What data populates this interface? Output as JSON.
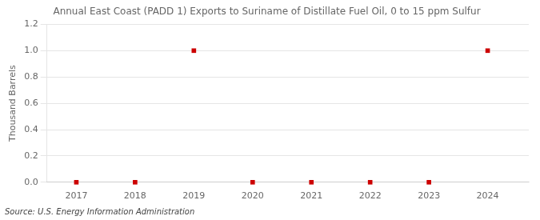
{
  "chart_data": {
    "type": "scatter",
    "title": "Annual East Coast (PADD 1) Exports to Suriname of Distillate Fuel Oil, 0 to 15 ppm Sulfur",
    "ylabel": "Thousand Barrels",
    "source": "Source: U.S. Energy Information Administration",
    "x": [
      2017,
      2018,
      2019,
      2020,
      2021,
      2022,
      2023,
      2024
    ],
    "values": [
      0,
      0,
      1,
      0,
      0,
      0,
      0,
      1
    ],
    "xlim": [
      2016.5,
      2024.7
    ],
    "ylim": [
      0,
      1.2
    ],
    "xticks": [
      2017,
      2018,
      2019,
      2020,
      2021,
      2022,
      2023,
      2024
    ],
    "yticks": [
      {
        "value": 0.0,
        "label": "0.0"
      },
      0.2,
      0.4,
      0.6,
      0.8,
      {
        "value": 1.0,
        "label": "1.0"
      },
      1.2
    ],
    "color": "#cc0000",
    "marker": "square",
    "grid": "y"
  }
}
